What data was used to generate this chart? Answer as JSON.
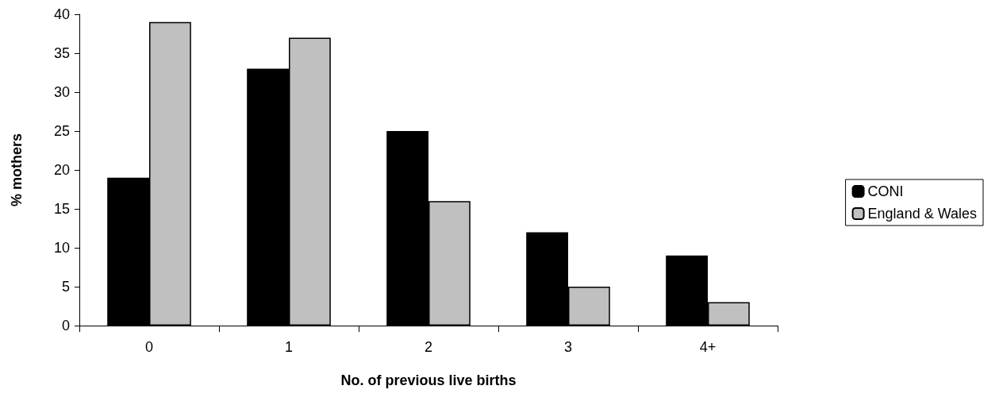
{
  "chart_data": {
    "type": "bar",
    "xlabel": "No. of previous live births",
    "ylabel": "% mothers",
    "categories": [
      "0",
      "1",
      "2",
      "3",
      "4+"
    ],
    "series": [
      {
        "name": "CONI",
        "color": "#000000",
        "values": [
          19,
          33,
          25,
          12,
          9
        ]
      },
      {
        "name": "England & Wales",
        "color": "#c0c0c0",
        "values": [
          39,
          37,
          16,
          5,
          3
        ]
      }
    ],
    "ylim": [
      0,
      40
    ],
    "yticks": [
      0,
      5,
      10,
      15,
      20,
      25,
      30,
      35,
      40
    ],
    "grid": false,
    "legend": "right"
  }
}
